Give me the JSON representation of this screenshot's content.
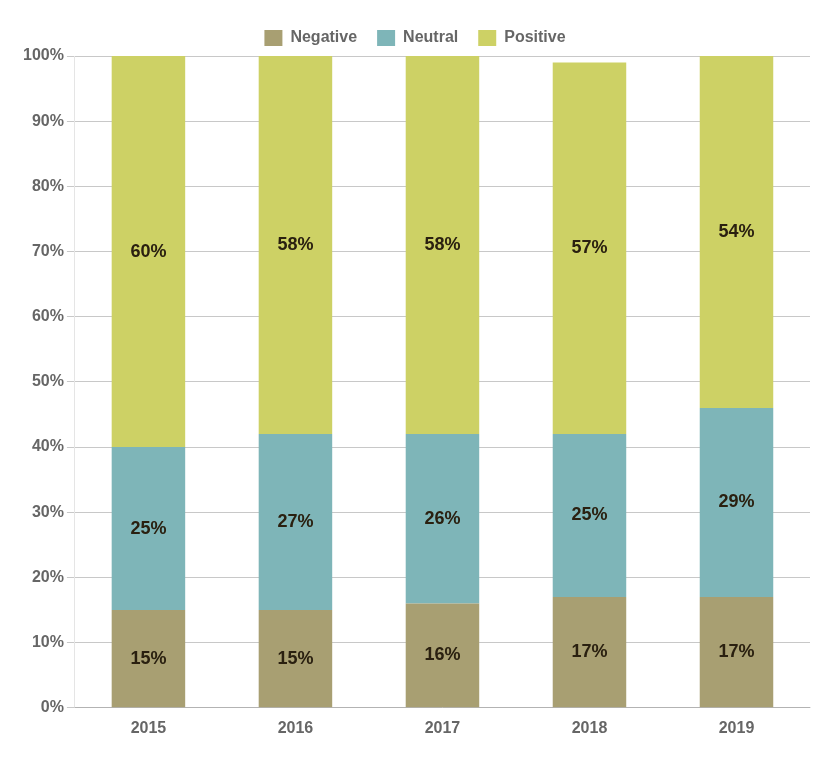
{
  "chart_data": {
    "type": "bar",
    "stacked": true,
    "categories": [
      "2015",
      "2016",
      "2017",
      "2018",
      "2019"
    ],
    "series": [
      {
        "name": "Negative",
        "color": "#a89f72",
        "values": [
          15,
          15,
          16,
          17,
          17
        ],
        "value_labels": [
          "15%",
          "15%",
          "16%",
          "17%",
          "17%"
        ]
      },
      {
        "name": "Neutral",
        "color": "#7eb5b8",
        "values": [
          25,
          27,
          26,
          25,
          29
        ],
        "value_labels": [
          "25%",
          "27%",
          "26%",
          "25%",
          "29%"
        ]
      },
      {
        "name": "Positive",
        "color": "#cdd165",
        "values": [
          60,
          58,
          58,
          57,
          54
        ],
        "value_labels": [
          "60%",
          "58%",
          "58%",
          "57%",
          "54%"
        ]
      }
    ],
    "ylim": [
      0,
      100
    ],
    "yticks": [
      {
        "value": 0,
        "label": "0%"
      },
      {
        "value": 10,
        "label": "10%"
      },
      {
        "value": 20,
        "label": "20%"
      },
      {
        "value": 30,
        "label": "30%"
      },
      {
        "value": 40,
        "label": "40%"
      },
      {
        "value": 50,
        "label": "50%"
      },
      {
        "value": 60,
        "label": "60%"
      },
      {
        "value": 70,
        "label": "70%"
      },
      {
        "value": 80,
        "label": "80%"
      },
      {
        "value": 90,
        "label": "90%"
      },
      {
        "value": 100,
        "label": "100%"
      }
    ],
    "grid": "y",
    "legend": "top",
    "data_labels": true
  }
}
